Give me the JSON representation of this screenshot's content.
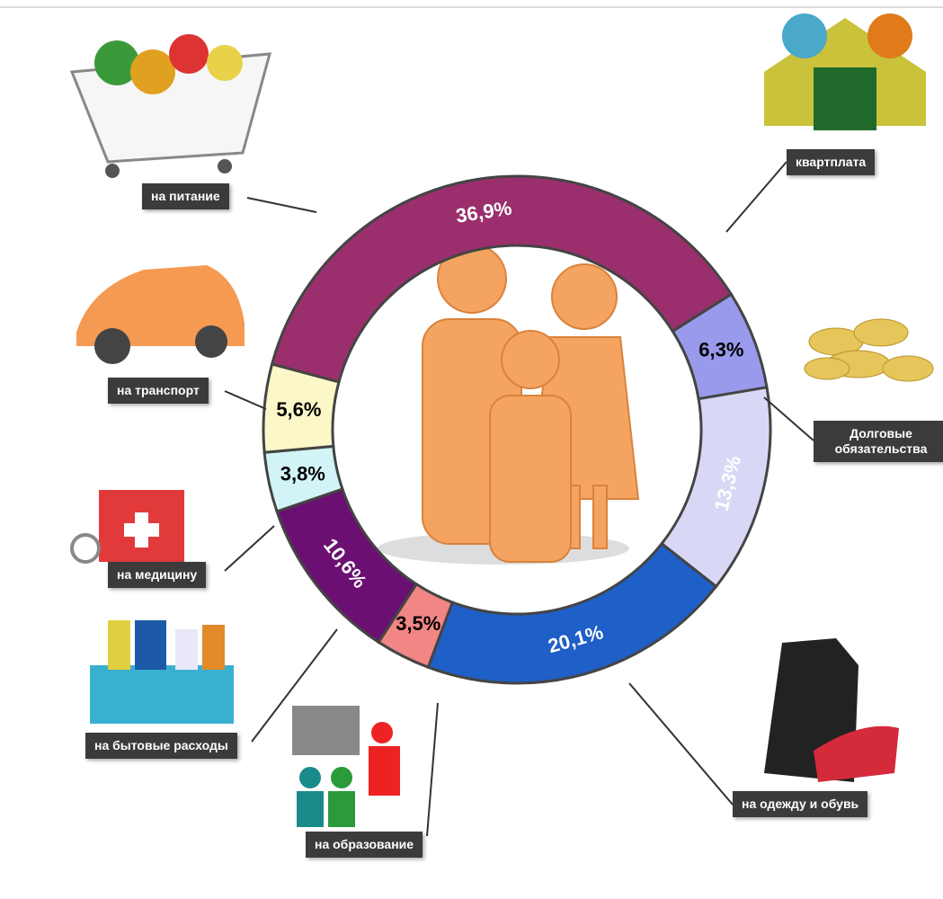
{
  "chart_data": {
    "type": "pie",
    "categories": [
      "на питание",
      "квартплата",
      "Долговые обязательства",
      "на одежду и обувь",
      "на образование",
      "на бытовые расходы",
      "на медицину",
      "на транспорт"
    ],
    "values": [
      36.9,
      6.3,
      13.3,
      20.1,
      3.5,
      10.6,
      3.8,
      5.6
    ],
    "value_labels": [
      "36,9%",
      "6,3%",
      "13,3%",
      "20,1%",
      "3,5%",
      "10,6%",
      "3,8%",
      "5,6%"
    ],
    "colors": [
      "#9b2f6e",
      "#9a9aec",
      "#d8d8f6",
      "#1f5fc8",
      "#f28585",
      "#6b1072",
      "#d2f4f6",
      "#fcf7c8"
    ],
    "donut": true
  }
}
